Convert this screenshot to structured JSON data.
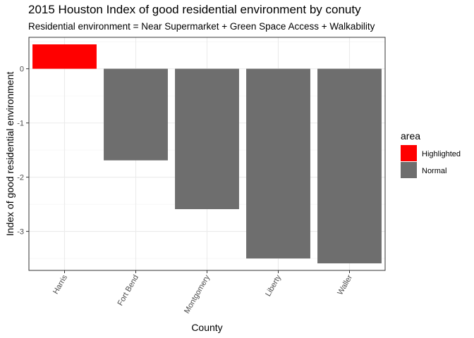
{
  "chart_data": {
    "type": "bar",
    "title": "2015 Houston Index of good residential environment by conuty",
    "subtitle": "Residential environment = Near Supermarket + Green Space Access + Walkability",
    "xlabel": "County",
    "ylabel": "Index of good residential environment",
    "categories": [
      "Harris",
      "Fort Bend",
      "Montgomery",
      "Liberty",
      "Waller"
    ],
    "values": [
      0.45,
      -1.69,
      -2.59,
      -3.5,
      -3.59
    ],
    "groups": [
      "Highlighted",
      "Normal",
      "Normal",
      "Normal",
      "Normal"
    ],
    "ylim": [
      -3.72,
      0.58
    ],
    "yticks": [
      0,
      -1,
      -2,
      -3
    ],
    "ytick_labels": [
      "0",
      "-1",
      "-2",
      "-3"
    ],
    "grid": true,
    "legend": {
      "title": "area",
      "placement": "right",
      "entries": [
        {
          "label": "Highlighted",
          "color": "#FF0000"
        },
        {
          "label": "Normal",
          "color": "#6E6E6E"
        }
      ]
    }
  }
}
